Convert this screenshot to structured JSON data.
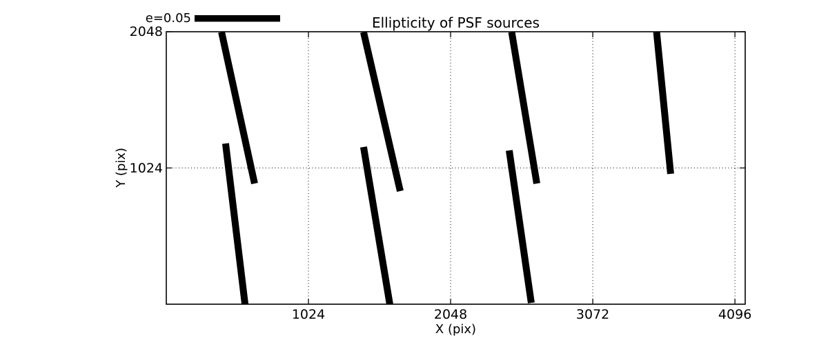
{
  "figure": {
    "background_color": "#ffffff",
    "foreground_color": "#000000"
  },
  "chart_data": {
    "type": "line",
    "subtype": "ellipticity-whisker-plot",
    "title": "Ellipticity of PSF sources",
    "xlabel": "X (pix)",
    "ylabel": "Y (pix)",
    "xlim": [
      0,
      4170
    ],
    "ylim": [
      0,
      2048
    ],
    "xticks": [
      1024,
      2048,
      3072,
      4096
    ],
    "yticks": [
      1024,
      2048
    ],
    "grid": {
      "style": "dotted",
      "color": "#000000"
    },
    "legend": {
      "label": "e=0.05",
      "position": "above-top-left",
      "key_color": "#000000"
    },
    "stroke_color": "#000000",
    "stroke_width_px": 10,
    "segments": [
      {
        "x1": 398,
        "y1": 2045,
        "x2": 636,
        "y2": 907
      },
      {
        "x1": 427,
        "y1": 1208,
        "x2": 567,
        "y2": 0
      },
      {
        "x1": 1421,
        "y1": 2045,
        "x2": 1685,
        "y2": 850
      },
      {
        "x1": 1421,
        "y1": 1182,
        "x2": 1610,
        "y2": 0
      },
      {
        "x1": 2488,
        "y1": 2045,
        "x2": 2669,
        "y2": 907
      },
      {
        "x1": 2470,
        "y1": 1156,
        "x2": 2629,
        "y2": 10
      },
      {
        "x1": 3532,
        "y1": 2045,
        "x2": 3633,
        "y2": 980
      }
    ]
  }
}
